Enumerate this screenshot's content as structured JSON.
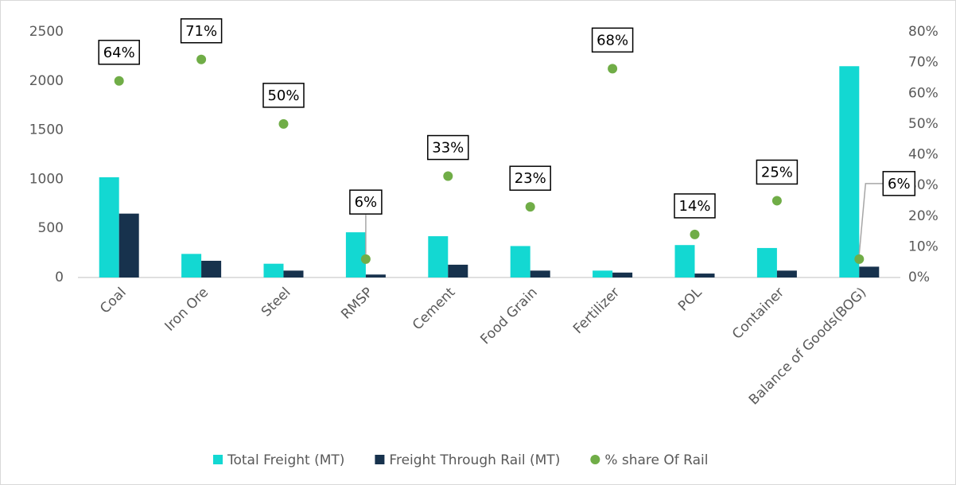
{
  "chart_data": {
    "type": "bar-scatter",
    "categories": [
      "Coal",
      "Iron Ore",
      "Steel",
      "RMSP",
      "Cement",
      "Food Grain",
      "Fertilizer",
      "POL",
      "Container",
      "Balance of Goods(BOG)"
    ],
    "series": [
      {
        "name": "Total Freight (MT)",
        "color": "#13d8d2",
        "values": [
          1020,
          240,
          140,
          460,
          420,
          320,
          70,
          330,
          300,
          2150
        ]
      },
      {
        "name": "Freight Through Rail (MT)",
        "color": "#17324d",
        "values": [
          650,
          170,
          70,
          30,
          130,
          70,
          50,
          40,
          70,
          110
        ]
      },
      {
        "name": "% share Of Rail",
        "color": "#70ad47",
        "axis": "y2",
        "values": [
          64,
          71,
          50,
          6,
          33,
          23,
          68,
          14,
          25,
          6
        ],
        "value_labels": [
          "64%",
          "71%",
          "50%",
          "6%",
          "33%",
          "23%",
          "68%",
          "14%",
          "25%",
          "6%"
        ]
      }
    ],
    "ylim": [
      0,
      2500
    ],
    "yticks": [
      0,
      500,
      1000,
      1500,
      2000,
      2500
    ],
    "y2lim": [
      0,
      80
    ],
    "y2ticks": [
      {
        "value": 0,
        "label": "0%"
      },
      {
        "value": 10,
        "label": "10%"
      },
      {
        "value": 20,
        "label": "20%"
      },
      {
        "value": 30,
        "label": "30%"
      },
      {
        "value": 40,
        "label": "40%"
      },
      {
        "value": 50,
        "label": "50%"
      },
      {
        "value": 60,
        "label": "60%"
      },
      {
        "value": 70,
        "label": "70%"
      },
      {
        "value": 80,
        "label": "80%"
      }
    ],
    "legend": "bottom"
  }
}
